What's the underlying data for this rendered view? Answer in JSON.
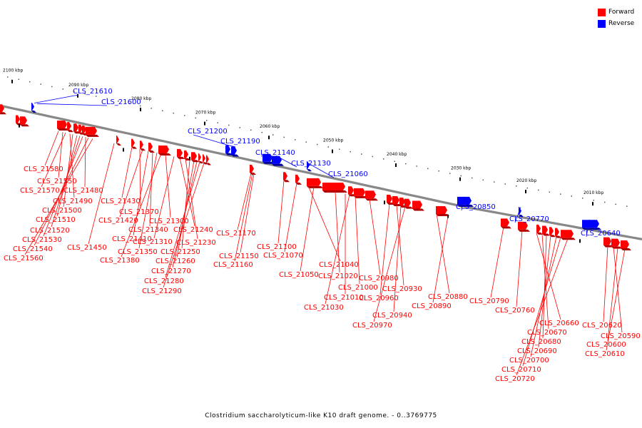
{
  "legend": {
    "forward_label": "Forward",
    "reverse_label": "Reverse",
    "forward_color": "#ff0000",
    "reverse_color": "#0000ff"
  },
  "caption": "Clostridium saccharolyticum-like K10 draft genome. - 0..3769775",
  "ruler_labels": [
    "2100 kbp",
    "2090 kbp",
    "2080 kbp",
    "2070 kbp",
    "2060 kbp",
    "2050 kbp",
    "2040 kbp",
    "2030 kbp",
    "2020 kbp",
    "2010 kbp"
  ],
  "reverse_labels": [
    "CLS_21610",
    "CLS_21600",
    "CLS_21200",
    "CLS_21190",
    "CLS_21140",
    "CLS_21130",
    "CLS_21060",
    "CLS_20850",
    "CLS_20770",
    "CLS_20640"
  ],
  "forward_labels": [
    "CLS_21580",
    "CLS_21550",
    "CLS_21570",
    "CLS_21490",
    "CLS_21480",
    "CLS_21500",
    "CLS_21510",
    "CLS_21520",
    "CLS_21530",
    "CLS_21540",
    "CLS_21560",
    "CLS_21450",
    "CLS_21430",
    "CLS_21370",
    "CLS_21420",
    "CLS_21410",
    "CLS_21340",
    "CLS_21350",
    "CLS_21380",
    "CLS_21300",
    "CLS_21310",
    "CLS_21240",
    "CLS_21230",
    "CLS_21250",
    "CLS_21260",
    "CLS_21270",
    "CLS_21280",
    "CLS_21290",
    "CLS_21170",
    "CLS_21150",
    "CLS_21160",
    "CLS_21100",
    "CLS_21070",
    "CLS_21040",
    "CLS_21050",
    "CLS_21020",
    "CLS_21010",
    "CLS_21030",
    "CLS_21000",
    "CLS_20980",
    "CLS_20960",
    "CLS_20930",
    "CLS_20940",
    "CLS_20970",
    "CLS_20880",
    "CLS_20890",
    "CLS_20790",
    "CLS_20760",
    "CLS_20660",
    "CLS_20670",
    "CLS_20680",
    "CLS_20690",
    "CLS_20700",
    "CLS_20710",
    "CLS_20720",
    "CLS_20620",
    "CLS_20590",
    "CLS_20600",
    "CLS_20610"
  ]
}
